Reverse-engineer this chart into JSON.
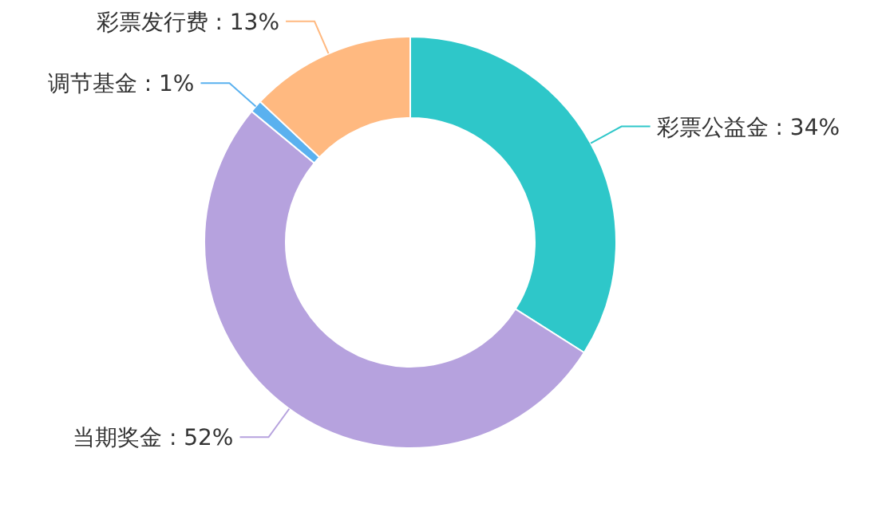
{
  "chart_data": {
    "type": "donut",
    "categories": [
      "彩票公益金",
      "当期奖金",
      "调节基金",
      "彩票发行费"
    ],
    "values": [
      34,
      52,
      1,
      13
    ],
    "colors": [
      "#2ec7c9",
      "#b6a2de",
      "#5ab1ef",
      "#ffb980"
    ],
    "value_labels": [
      ": 34%",
      ": 52%",
      ": 1%",
      ": 13%"
    ]
  }
}
